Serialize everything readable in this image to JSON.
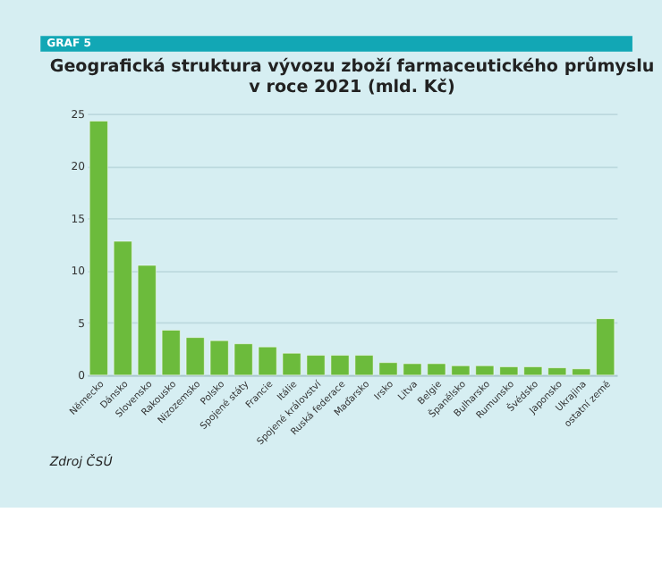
{
  "chart_data": {
    "type": "bar",
    "title": "Geografická struktura vývozu zboží farmaceutického průmyslu v roce 2021 (mld. Kč)",
    "annotations": [
      "GRAF 5",
      "Zdroj ČSÚ"
    ],
    "categories": [
      "Německo",
      "Dánsko",
      "Slovensko",
      "Rakousko",
      "Nizozemsko",
      "Polsko",
      "Spojené státy",
      "Francie",
      "Itálie",
      "Spojené království",
      "Ruská federace",
      "Maďarsko",
      "Irsko",
      "Litva",
      "Belgie",
      "Španělsko",
      "Bulharsko",
      "Rumunsko",
      "Švédsko",
      "Japonsko",
      "Ukrajina",
      "ostatní země"
    ],
    "values": [
      24.3,
      12.8,
      10.5,
      4.3,
      3.6,
      3.3,
      3.0,
      2.7,
      2.1,
      1.9,
      1.9,
      1.9,
      1.2,
      1.1,
      1.1,
      0.9,
      0.9,
      0.8,
      0.8,
      0.7,
      0.6,
      5.4
    ],
    "color": "#6cbb3c",
    "ylim": [
      0,
      25
    ],
    "yticks": [
      0,
      5,
      10,
      15,
      20,
      25
    ],
    "grid": "y"
  }
}
